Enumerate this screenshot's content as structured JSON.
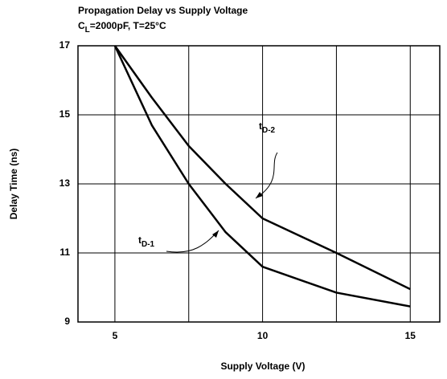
{
  "chart_data": {
    "type": "line",
    "title": "Propagation Delay vs Supply Voltage",
    "subtitle": [
      "C",
      "L",
      "=2000pF, T=25°C"
    ],
    "xlabel": "Supply Voltage (V)",
    "ylabel": "Delay Time (ns)",
    "x": [
      5,
      6.25,
      7.5,
      8.75,
      10,
      12.5,
      15
    ],
    "series": [
      {
        "name": [
          "t",
          "D-1"
        ],
        "color": "#000000",
        "values": [
          17,
          14.7,
          13,
          11.6,
          10.6,
          9.85,
          9.45
        ]
      },
      {
        "name": [
          "t",
          "D-2"
        ],
        "color": "#000000",
        "values": [
          17,
          15.5,
          14.1,
          13.0,
          12,
          11,
          9.95
        ]
      }
    ],
    "xlim": [
      3.75,
      16
    ],
    "ylim": [
      9,
      17
    ],
    "xticks": [
      5,
      10,
      15
    ],
    "xgrid": [
      7.5,
      12.5
    ],
    "yticks": [
      9,
      11,
      13,
      15,
      17
    ],
    "grid": true
  }
}
